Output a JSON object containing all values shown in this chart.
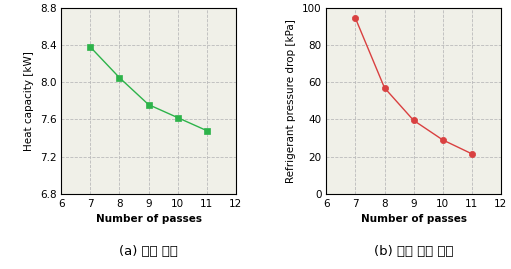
{
  "left_x": [
    7,
    8,
    9,
    10,
    11
  ],
  "left_y": [
    8.38,
    8.05,
    7.76,
    7.62,
    7.48
  ],
  "left_xlabel": "Number of passes",
  "left_ylabel": "Heat capacity [kW]",
  "left_xlim": [
    6,
    12
  ],
  "left_ylim": [
    6.8,
    8.8
  ],
  "left_xticks": [
    6,
    7,
    8,
    9,
    10,
    11,
    12
  ],
  "left_yticks": [
    6.8,
    7.2,
    7.6,
    8.0,
    8.4,
    8.8
  ],
  "left_caption": "(a) 냉방 능력",
  "left_color": "#2db34a",
  "right_x": [
    7,
    8,
    9,
    10,
    11
  ],
  "right_y": [
    94.5,
    57.0,
    39.5,
    29.0,
    21.5
  ],
  "right_xlabel": "Number of passes",
  "right_ylabel": "Refrigerant pressure drop [kPa]",
  "right_xlim": [
    6,
    12
  ],
  "right_ylim": [
    0,
    100
  ],
  "right_xticks": [
    6,
    7,
    8,
    9,
    10,
    11,
    12
  ],
  "right_yticks": [
    0,
    20,
    40,
    60,
    80,
    100
  ],
  "right_caption": "(b) 냉매 압력 손실",
  "right_color": "#d94040",
  "grid_color": "#bbbbbb",
  "background_color": "#f0f0e8",
  "label_fontsize": 7.5,
  "tick_fontsize": 7.5,
  "caption_fontsize": 9.5
}
